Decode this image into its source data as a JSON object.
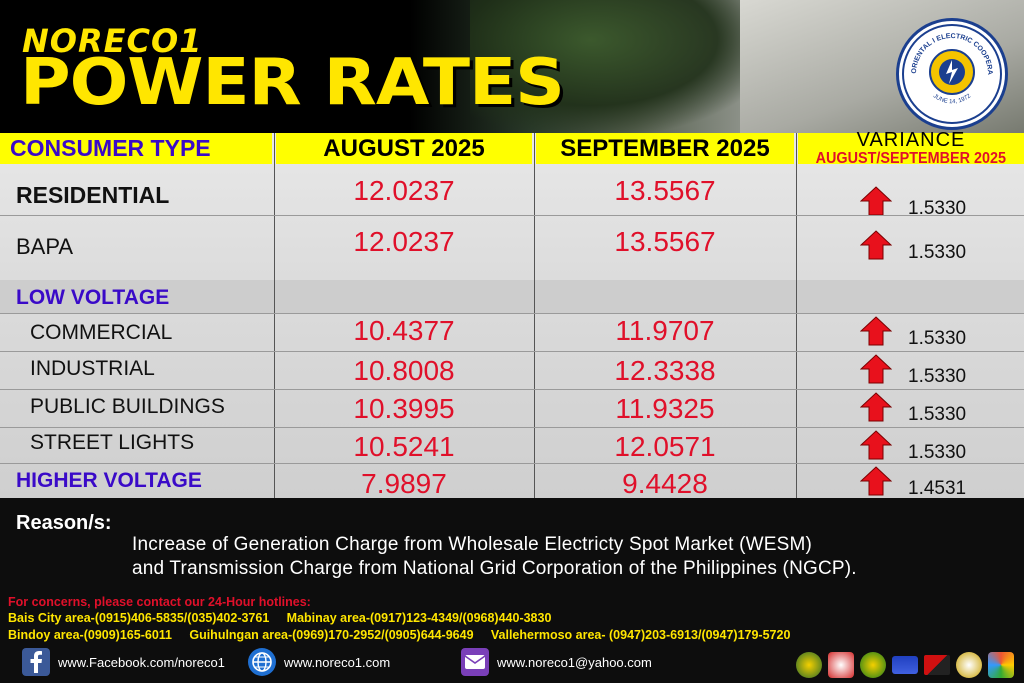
{
  "header": {
    "brand": "NORECO1",
    "title": "POWER RATES",
    "logo_text_top": "NEGROS ORIENTAL I ELECTRIC COOPERATIVE INC.",
    "logo_date": "JUNE 14, 1972"
  },
  "table": {
    "columns": {
      "consumer_type": "CONSUMER TYPE",
      "previous": "AUGUST 2025",
      "current": "SEPTEMBER 2025",
      "variance": "VARIANCE",
      "variance_sub": "AUGUST/SEPTEMBER 2025"
    },
    "rows": [
      {
        "label": "RESIDENTIAL",
        "august": "12.0237",
        "september": "13.5567",
        "variance": "1.5330"
      },
      {
        "label": "BAPA",
        "august": "12.0237",
        "september": "13.5567",
        "variance": "1.5330"
      },
      {
        "label": "LOW VOLTAGE"
      },
      {
        "label": "COMMERCIAL",
        "august": "10.4377",
        "september": "11.9707",
        "variance": "1.5330"
      },
      {
        "label": "INDUSTRIAL",
        "august": "10.8008",
        "september": "12.3338",
        "variance": "1.5330"
      },
      {
        "label": "PUBLIC BUILDINGS",
        "august": "10.3995",
        "september": "11.9325",
        "variance": "1.5330"
      },
      {
        "label": "STREET LIGHTS",
        "august": "10.5241",
        "september": "12.0571",
        "variance": "1.5330"
      },
      {
        "label": "HIGHER VOLTAGE",
        "august": "7.9897",
        "september": "9.4428",
        "variance": "1.4531"
      }
    ]
  },
  "reason": {
    "title": "Reason/s:",
    "line1": "Increase of Generation Charge from Wholesale Electricty Spot Market (WESM)",
    "line2": "and  Transmission Charge from National Grid Corporation of the Philippines (NGCP)."
  },
  "contacts": {
    "title": "For concerns, please contact our 24-Hour hotlines:",
    "line1": "Bais City area-(0915)406-5835/(035)402-3761     Mabinay area-(0917)123-4349/(0968)440-3830",
    "line2": "Bindoy area-(0909)165-6011     Guihulngan area-(0969)170-2952/(0905)644-9649     Vallehermoso area- (0947)203-6913/(0947)179-5720"
  },
  "social": {
    "facebook": "www.Facebook.com/noreco1",
    "website": "www.noreco1.com",
    "email": "www.noreco1@yahoo.com"
  },
  "colors": {
    "accent_yellow": "#ffe600",
    "header_band": "#ffff00",
    "value_red": "#e0102a",
    "label_blue": "#3a0ac8",
    "increase_arrow": "#e8111c"
  },
  "icons": [
    "facebook-icon",
    "globe-icon",
    "mail-icon",
    "increase-arrow-icon"
  ]
}
